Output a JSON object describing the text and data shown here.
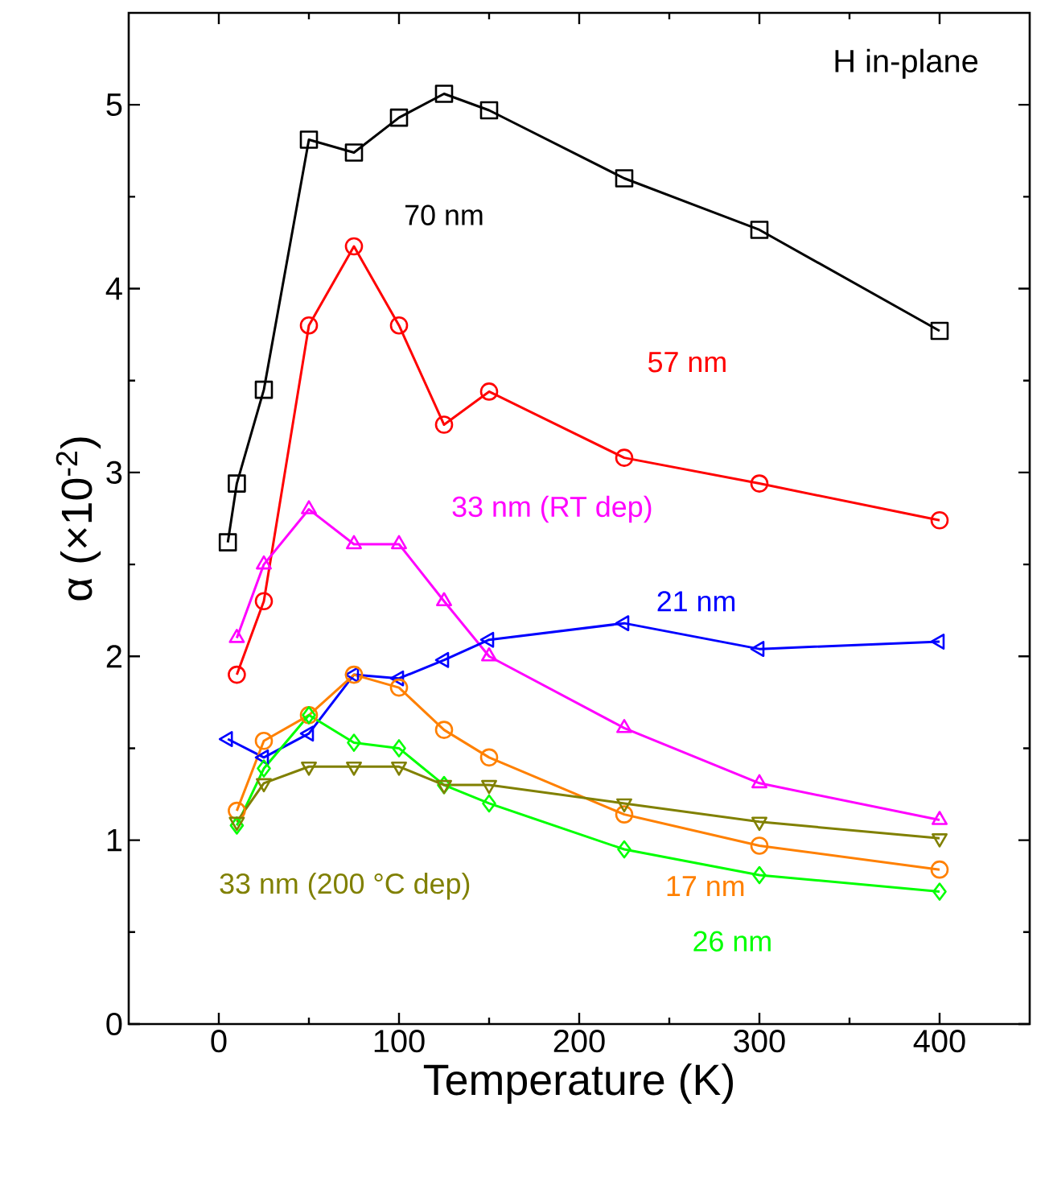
{
  "chart_data": {
    "type": "line",
    "xlabel": "Temperature (K)",
    "ylabel": "α (×10$^{-2}$)",
    "xlim": [
      -50,
      450
    ],
    "ylim": [
      0,
      5.5
    ],
    "xticks": [
      0,
      100,
      200,
      300,
      400
    ],
    "yticks": [
      0,
      1,
      2,
      3,
      4,
      5
    ],
    "annotations": [
      "H in-plane"
    ],
    "grid": false,
    "legend": false,
    "line_style": "solid",
    "series": [
      {
        "name": "70 nm",
        "color": "#000000",
        "marker": "square",
        "x": [
          5,
          10,
          25,
          50,
          75,
          100,
          125,
          150,
          225,
          300,
          400
        ],
        "values": [
          2.62,
          2.94,
          3.45,
          4.81,
          4.74,
          4.93,
          5.06,
          4.97,
          4.6,
          4.32,
          3.77
        ]
      },
      {
        "name": "57 nm",
        "color": "#ff0000",
        "marker": "circle",
        "x": [
          10,
          25,
          50,
          75,
          100,
          125,
          150,
          225,
          300,
          400
        ],
        "values": [
          1.9,
          2.3,
          3.8,
          4.23,
          3.8,
          3.26,
          3.44,
          3.08,
          2.94,
          2.74
        ]
      },
      {
        "name": "33 nm (RT dep)",
        "color": "#ff00ff",
        "marker": "triangle",
        "x": [
          10,
          25,
          50,
          75,
          100,
          125,
          150,
          225,
          300,
          400
        ],
        "values": [
          2.1,
          2.5,
          2.8,
          2.61,
          2.61,
          2.3,
          2.0,
          1.61,
          1.31,
          1.11
        ]
      },
      {
        "name": "21 nm",
        "color": "#0000ff",
        "marker": "triangle-left",
        "x": [
          5,
          25,
          50,
          75,
          100,
          125,
          150,
          225,
          300,
          400
        ],
        "values": [
          1.55,
          1.45,
          1.58,
          1.9,
          1.88,
          1.98,
          2.09,
          2.18,
          2.04,
          2.08
        ]
      },
      {
        "name": "17 nm",
        "color": "#ff8000",
        "marker": "circle",
        "x": [
          10,
          25,
          50,
          75,
          100,
          125,
          150,
          225,
          300,
          400
        ],
        "values": [
          1.16,
          1.54,
          1.68,
          1.9,
          1.83,
          1.6,
          1.45,
          1.14,
          0.97,
          0.84
        ]
      },
      {
        "name": "26 nm",
        "color": "#00ff00",
        "marker": "diamond",
        "x": [
          10,
          25,
          50,
          75,
          100,
          125,
          150,
          225,
          300,
          400
        ],
        "values": [
          1.08,
          1.39,
          1.68,
          1.53,
          1.5,
          1.3,
          1.2,
          0.95,
          0.81,
          0.72
        ]
      },
      {
        "name": "33 nm (200 °C dep)",
        "color": "#808000",
        "marker": "triangle-down",
        "x": [
          10,
          25,
          50,
          75,
          100,
          125,
          150,
          225,
          300,
          400
        ],
        "values": [
          1.1,
          1.31,
          1.4,
          1.4,
          1.4,
          1.3,
          1.3,
          1.2,
          1.1,
          1.01
        ]
      }
    ]
  }
}
